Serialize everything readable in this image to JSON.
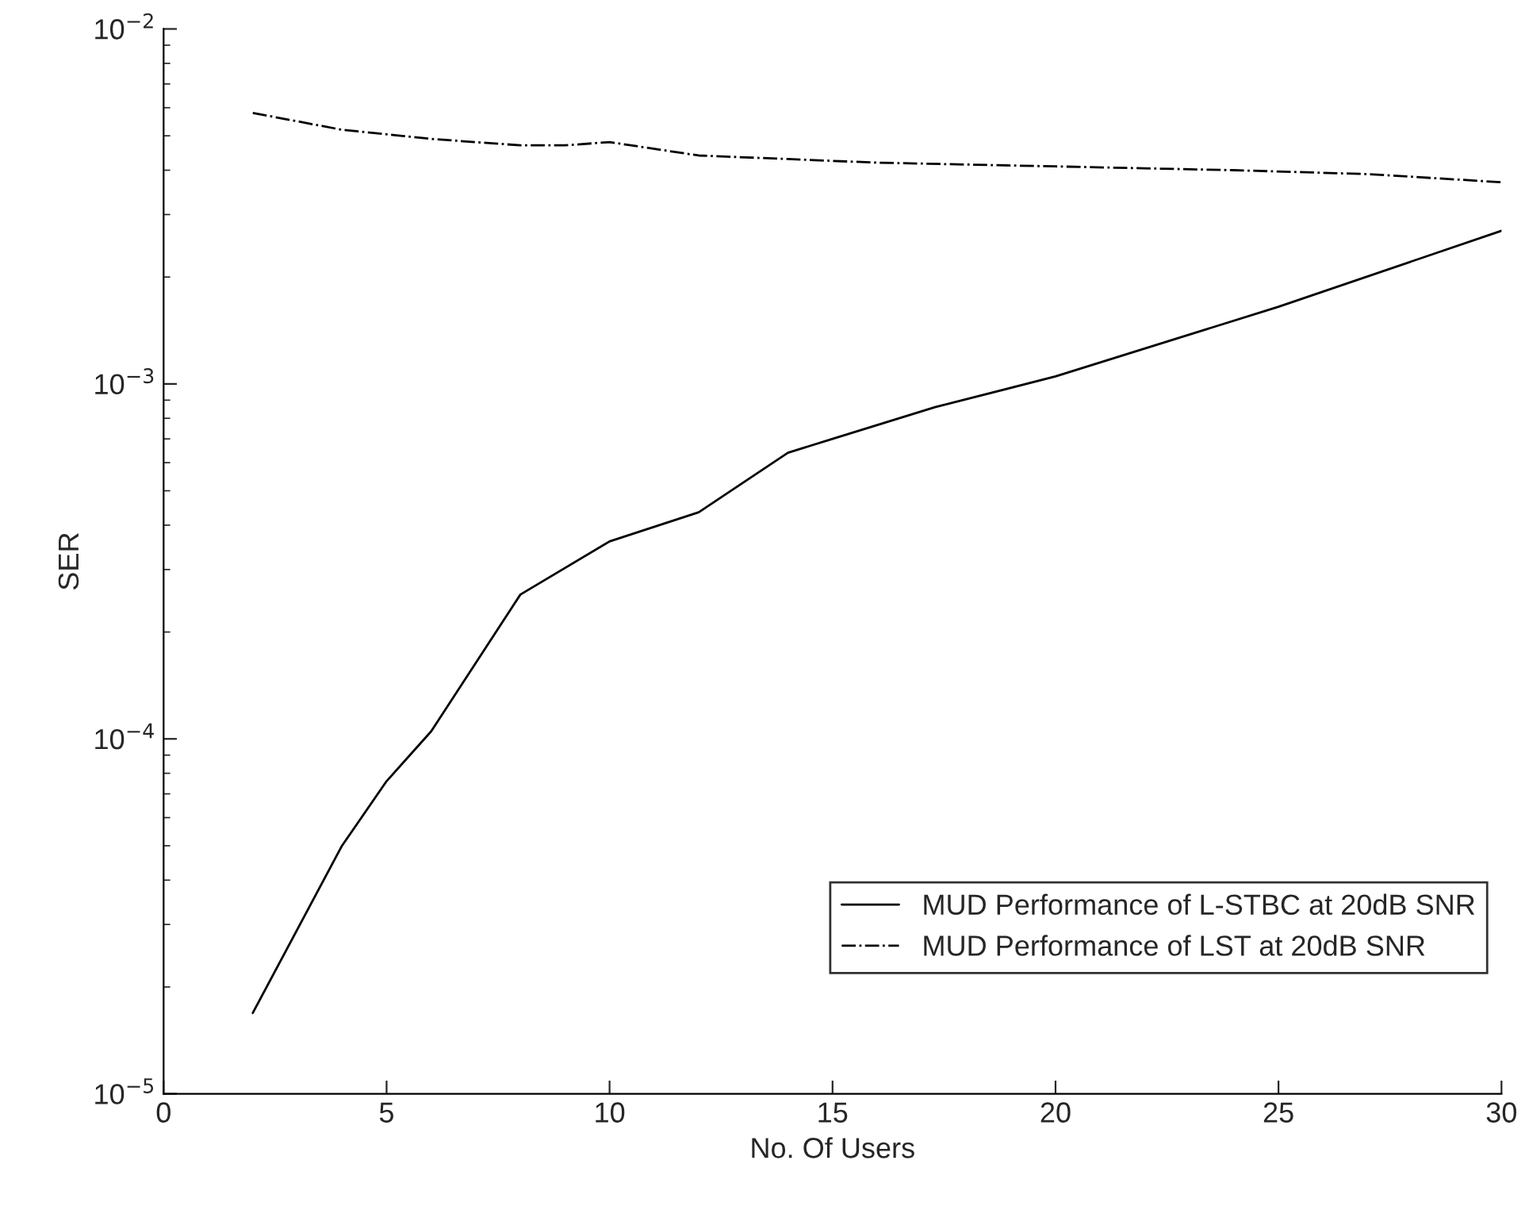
{
  "chart_data": {
    "type": "line",
    "xlabel": "No. Of Users",
    "ylabel": "SER",
    "log": "y",
    "grid": false,
    "legend": "bottom right",
    "xlim": [
      0,
      30
    ],
    "xticks": [
      0,
      5,
      10,
      15,
      20,
      25,
      30
    ],
    "ylim": [
      1e-05,
      0.01
    ],
    "yticks": [
      {
        "value": 1e-05,
        "label": "10$^{−5}$"
      },
      {
        "value": 0.0001,
        "label": "10$^{−4}$"
      },
      {
        "value": 0.001,
        "label": "10$^{−3}$"
      },
      {
        "value": 0.01,
        "label": "10$^{−2}$"
      }
    ],
    "series": [
      {
        "name": "MUD Performance of L-STBC at 20dB SNR",
        "color": "#000000",
        "line_style": "solid",
        "x": [
          2,
          4,
          5,
          6,
          8,
          10,
          12,
          14,
          15,
          17.3,
          20,
          25,
          30
        ],
        "values": [
          1.69e-05,
          5e-05,
          7.6e-05,
          0.000105,
          0.000255,
          0.00036,
          0.000435,
          0.00064,
          0.0007,
          0.00086,
          0.00105,
          0.00165,
          0.0027
        ]
      },
      {
        "name": "MUD Performance of LST at 20dB SNR",
        "color": "#000000",
        "line_style": "dashdot",
        "x": [
          2,
          4,
          6,
          8,
          9,
          10,
          12,
          14,
          16,
          20,
          24,
          27,
          30
        ],
        "values": [
          0.0058,
          0.0052,
          0.0049,
          0.0047,
          0.0047,
          0.0048,
          0.0044,
          0.0043,
          0.0042,
          0.0041,
          0.004,
          0.0039,
          0.0037
        ]
      }
    ]
  }
}
